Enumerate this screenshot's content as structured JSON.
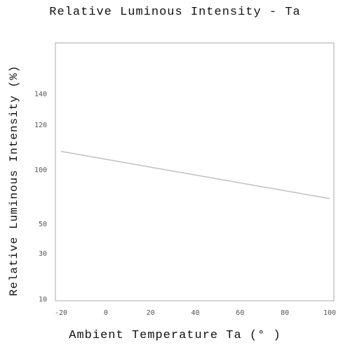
{
  "chart_data": {
    "type": "line",
    "title": "Relative Luminous Intensity - Ta",
    "xlabel": "Ambient Temperature Ta (° )",
    "ylabel": "Relative Luminous Intensity (%)",
    "x_ticks": [
      -20,
      0,
      20,
      40,
      60,
      80,
      100
    ],
    "x_tick_labels": [
      "-20",
      "0",
      "20",
      "40",
      "60",
      "80",
      "100"
    ],
    "y_tick_labels": [
      "10",
      "30",
      "50",
      "100",
      "120",
      "140"
    ],
    "xlim": [
      -20,
      100
    ],
    "grid": false,
    "series": [
      {
        "x": [
          -20,
          100
        ],
        "y": [
          108,
          73
        ]
      }
    ]
  }
}
